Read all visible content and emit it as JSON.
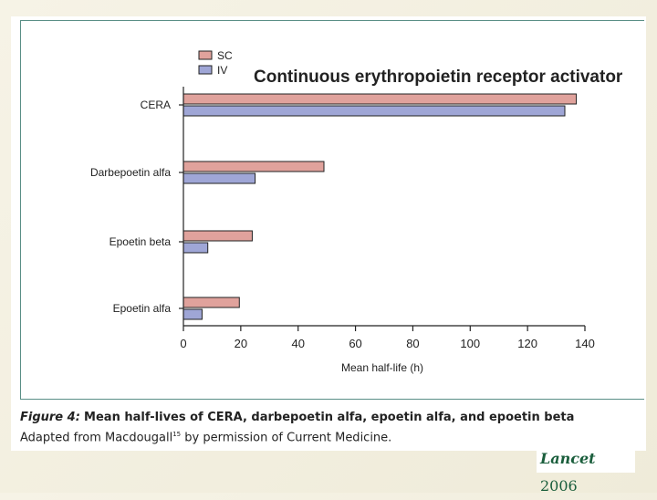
{
  "chart_data": {
    "type": "bar",
    "orientation": "horizontal",
    "title": "Continuous erythropoietin receptor activator",
    "categories": [
      "CERA",
      "Darbepoetin alfa",
      "Epoetin beta",
      "Epoetin alfa"
    ],
    "series": [
      {
        "name": "SC",
        "color": "#e0a29c",
        "values": [
          137,
          49,
          24,
          19.5
        ]
      },
      {
        "name": "IV",
        "color": "#9fa6d6",
        "values": [
          133,
          25,
          8.5,
          6.5
        ]
      }
    ],
    "xlabel": "Mean half-life (h)",
    "ylabel": "",
    "xlim": [
      0,
      140
    ],
    "xticks": [
      0,
      20,
      40,
      60,
      80,
      100,
      120,
      140
    ],
    "grid": false,
    "legend_position": "top-left"
  },
  "caption": {
    "label": "Figure 4:",
    "title": "Mean half-lives of CERA, darbepoetin alfa, epoetin alfa, and epoetin beta",
    "credit_before": "Adapted from Macdougall",
    "credit_ref": "15",
    "credit_after": " by permission of Current Medicine."
  },
  "logo": {
    "brand": "Lancet",
    "year": "2006"
  }
}
